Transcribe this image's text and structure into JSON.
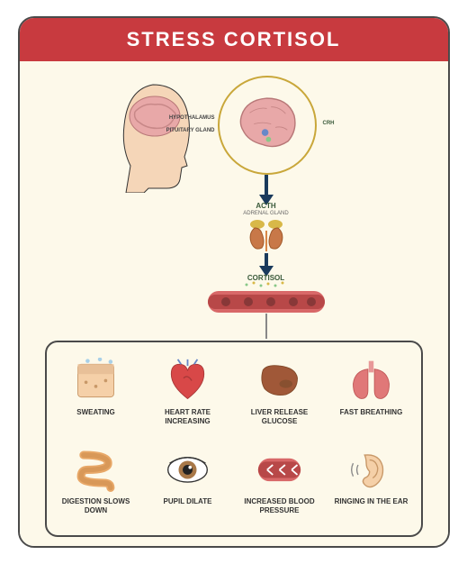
{
  "title": "STRESS CORTISOL",
  "colors": {
    "header_bg": "#c83a3f",
    "card_bg": "#fdf9ea",
    "border": "#4a4a4a",
    "arrow": "#1a3a5c",
    "accent_green": "#3a5a3a",
    "vessel": "#b84848",
    "skin": "#f5d6b8",
    "brain": "#e8a8a8",
    "kidney": "#c87848",
    "adrenal": "#d8b848"
  },
  "brain_labels": {
    "top": "HYPOTHALAMUS",
    "bottom": "PITUITARY GLAND",
    "output": "CRH"
  },
  "pathway": {
    "step1": "ACTH",
    "gland": "ADRENAL GLAND",
    "step2": "CORTISOL"
  },
  "effects": [
    {
      "label": "SWEATING",
      "icon": "skin"
    },
    {
      "label": "HEART RATE INCREASING",
      "icon": "heart"
    },
    {
      "label": "LIVER RELEASE GLUCOSE",
      "icon": "liver"
    },
    {
      "label": "FAST BREATHING",
      "icon": "lungs"
    },
    {
      "label": "DIGESTION SLOWS DOWN",
      "icon": "intestine"
    },
    {
      "label": "PUPIL DILATE",
      "icon": "eye"
    },
    {
      "label": "INCREASED BLOOD PRESSURE",
      "icon": "pressure"
    },
    {
      "label": "RINGING IN THE EAR",
      "icon": "ear"
    }
  ]
}
